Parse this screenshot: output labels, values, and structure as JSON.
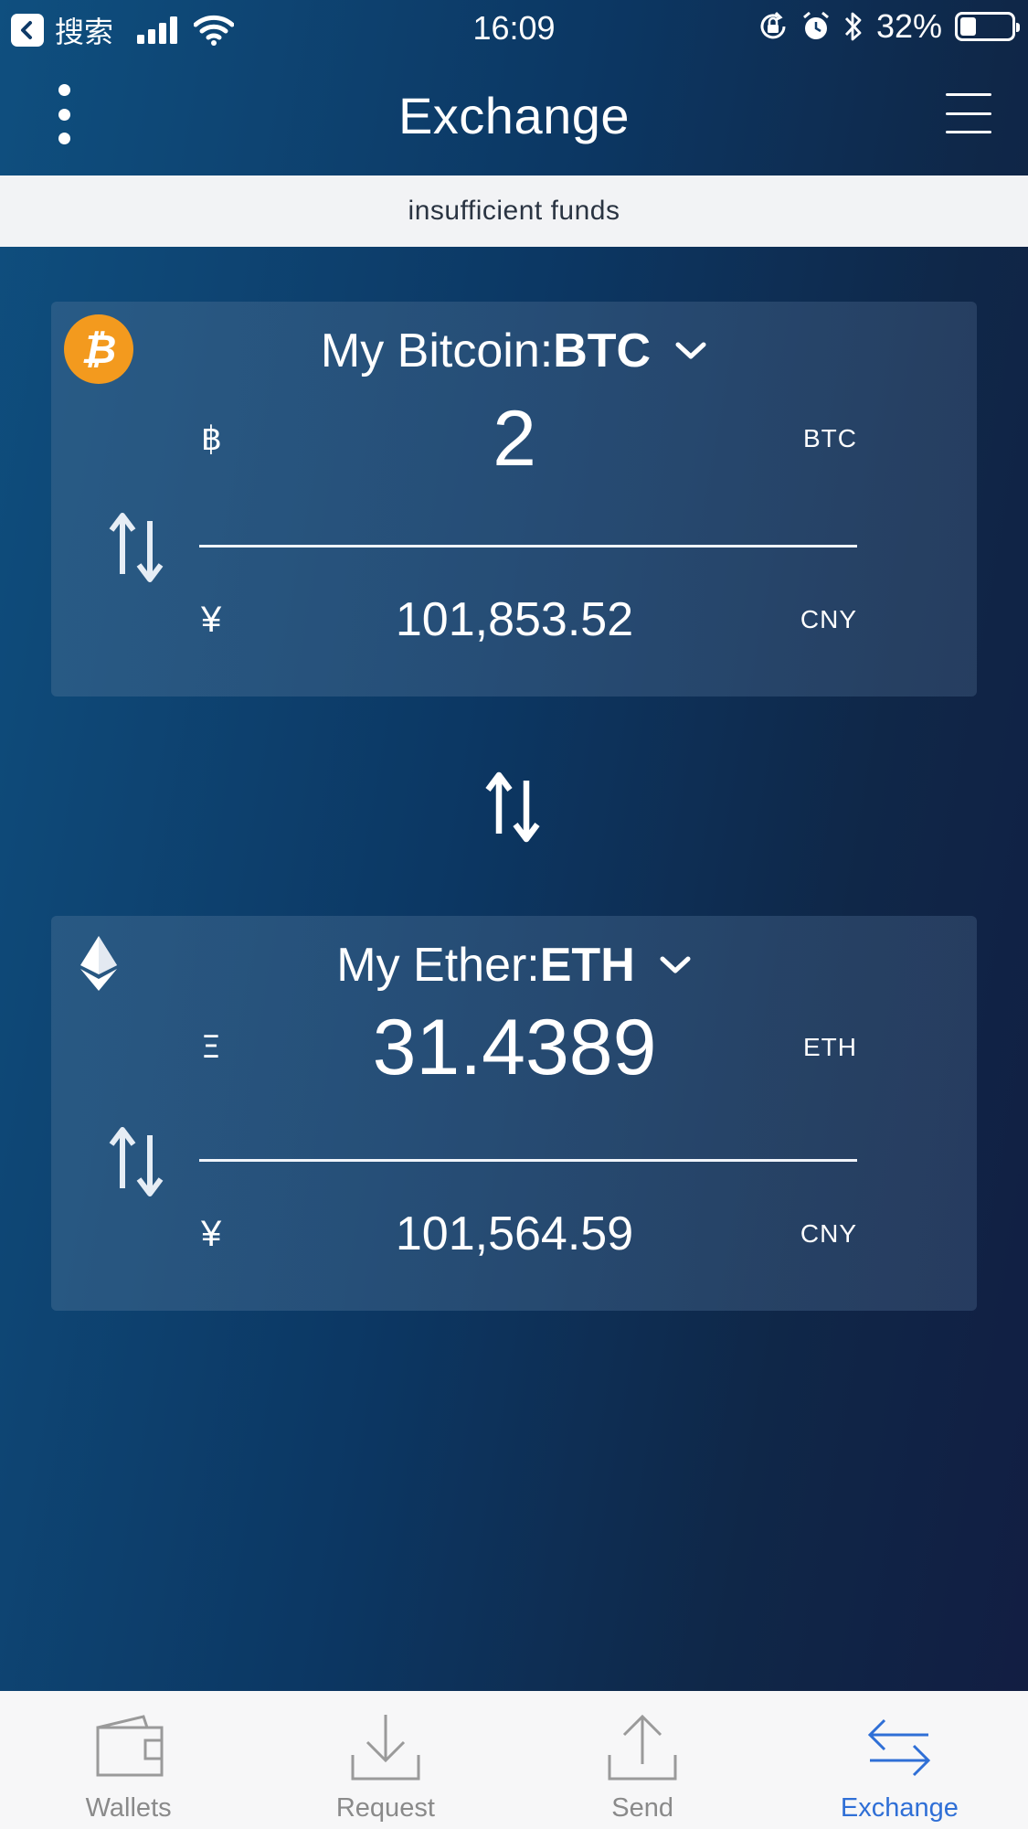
{
  "status_bar": {
    "back_text": "搜索",
    "time": "16:09",
    "battery": "32%",
    "battery_level": 0.32
  },
  "header": {
    "title": "Exchange"
  },
  "notice": {
    "text": "insufficient funds"
  },
  "from_card": {
    "wallet_name": "My Bitcoin:",
    "ticker": "BTC",
    "crypto_symbol": "฿",
    "crypto_amount": "2",
    "crypto_unit": "BTC",
    "fiat_symbol": "¥",
    "fiat_amount": "101,853.52",
    "fiat_unit": "CNY"
  },
  "to_card": {
    "wallet_name": "My Ether:",
    "ticker": "ETH",
    "crypto_symbol": "Ξ",
    "crypto_amount": "31.4389",
    "crypto_unit": "ETH",
    "fiat_symbol": "¥",
    "fiat_amount": "101,564.59",
    "fiat_unit": "CNY"
  },
  "tabbar": {
    "tabs": [
      {
        "label": "Wallets",
        "icon": "wallet-icon",
        "active": false
      },
      {
        "label": "Request",
        "icon": "download-icon",
        "active": false
      },
      {
        "label": "Send",
        "icon": "upload-icon",
        "active": false
      },
      {
        "label": "Exchange",
        "icon": "exchange-icon",
        "active": true
      }
    ]
  },
  "colors": {
    "accent": "#2f6fd6",
    "btc_orange": "#f39a1e",
    "notice_bg": "#f2f3f5",
    "tab_inactive": "#8a8a8a"
  }
}
